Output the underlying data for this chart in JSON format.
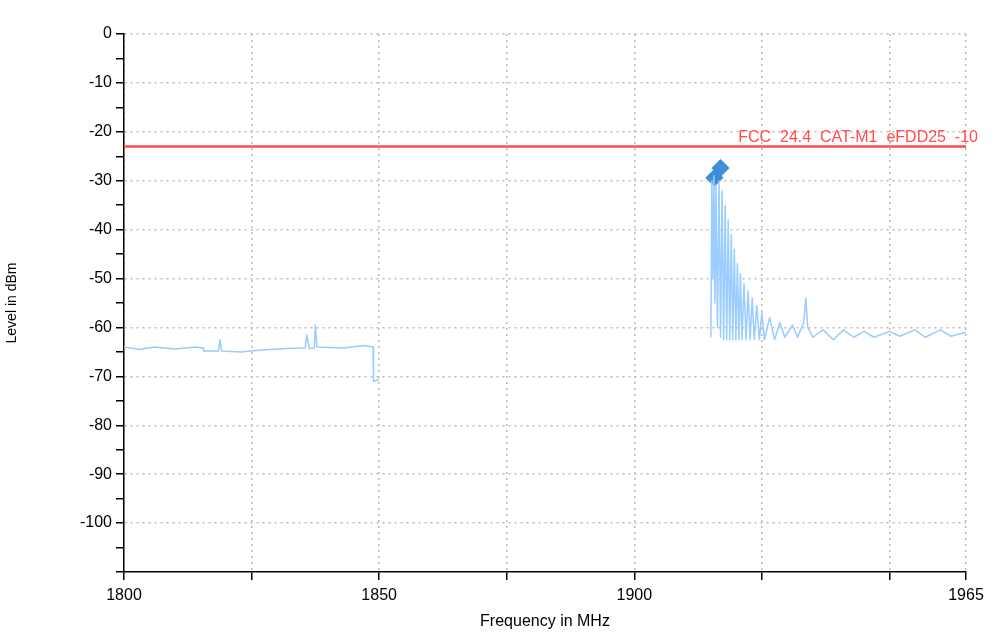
{
  "chart_data": {
    "type": "line",
    "xlabel": "Frequency in MHz",
    "ylabel": "Level in dBm",
    "xlim": [
      1800,
      1965
    ],
    "xticks": [
      1800,
      {
        "value": 1825,
        "label": null
      },
      1850,
      {
        "value": 1875,
        "label": null
      },
      1900,
      {
        "value": 1925,
        "label": null
      },
      {
        "value": 1950,
        "label": null
      },
      1965
    ],
    "ylim": [
      -110,
      0
    ],
    "yticks": [
      0,
      {
        "value": -5,
        "label": null
      },
      -10,
      {
        "value": -15,
        "label": null
      },
      -20,
      {
        "value": -25,
        "label": null
      },
      -30,
      {
        "value": -35,
        "label": null
      },
      -40,
      {
        "value": -45,
        "label": null
      },
      -50,
      {
        "value": -55,
        "label": null
      },
      -60,
      {
        "value": -65,
        "label": null
      },
      -70,
      {
        "value": -75,
        "label": null
      },
      -80,
      {
        "value": -85,
        "label": null
      },
      -90,
      {
        "value": -95,
        "label": null
      },
      -100,
      {
        "value": -105,
        "label": null
      },
      {
        "value": -110,
        "label": null
      }
    ],
    "grid": true,
    "legend": false,
    "marker": "none",
    "ref_lines": [
      {
        "axis": "y",
        "value": -23,
        "label": "FCC  24.4  CAT-M1  eFDD25  -10",
        "color": "#ff4d4d"
      }
    ],
    "series": [
      {
        "color": "#99ccff",
        "x": [
          1800,
          1803,
          1806,
          1810,
          1814,
          1815.5,
          1815.6,
          1818.5,
          1818.8,
          1819.1,
          1823,
          1827,
          1832,
          1835.5,
          1835.8,
          1836.3,
          1837.3,
          1837.5,
          1837.8,
          1843,
          1847,
          1848.8,
          1848.9,
          1849.6,
          1850,
          1882,
          1915.0,
          1915.2,
          1915.4,
          1915.6,
          1915.8,
          1916.0,
          1916.3,
          1916.6,
          1916.9,
          1917.2,
          1917.5,
          1917.8,
          1918.1,
          1918.4,
          1918.7,
          1919.0,
          1919.3,
          1919.6,
          1919.9,
          1920.2,
          1920.5,
          1920.8,
          1921.1,
          1921.5,
          1921.9,
          1922.3,
          1922.7,
          1923.1,
          1923.5,
          1924.0,
          1924.5,
          1925,
          1925.5,
          1926.5,
          1927.5,
          1928.5,
          1929.5,
          1931,
          1932,
          1933.2,
          1933.6,
          1934,
          1935,
          1937,
          1939,
          1941,
          1943,
          1945,
          1947,
          1950,
          1952,
          1955,
          1957,
          1960,
          1962,
          1965
        ],
        "values": [
          -64,
          -64.5,
          -64,
          -64.4,
          -64,
          -64.2,
          -64.8,
          -64.8,
          -62.5,
          -64.8,
          -65,
          -64.6,
          -64.3,
          -64.2,
          -61.5,
          -64.3,
          -64.2,
          -59.5,
          -64,
          -64.2,
          -63.7,
          -64,
          -71,
          -70.8,
          -70.6,
          null,
          -62,
          -30,
          -50,
          -29,
          -55,
          -31,
          -60,
          -30,
          -62,
          -32,
          -62.5,
          -35,
          -62.5,
          -38,
          -62.5,
          -41,
          -62.5,
          -44,
          -62.5,
          -47,
          -62.5,
          -49,
          -62.5,
          -51,
          -62.5,
          -52.5,
          -62.5,
          -54,
          -62.5,
          -55.5,
          -62.5,
          -57,
          -62.5,
          -58,
          -62.5,
          -59,
          -62,
          -59.5,
          -62,
          -59,
          -54,
          -60,
          -62,
          -60.5,
          -62.5,
          -60.5,
          -62,
          -60.8,
          -62,
          -60.8,
          -61.8,
          -60.5,
          -62,
          -60.5,
          -61.8,
          -61
        ]
      },
      {
        "type": "scatter",
        "color": "#3a8fd6",
        "marker": "diamond",
        "x": [
          1915.7,
          1916.9
        ],
        "values": [
          -29.4,
          -27.4
        ]
      }
    ]
  }
}
